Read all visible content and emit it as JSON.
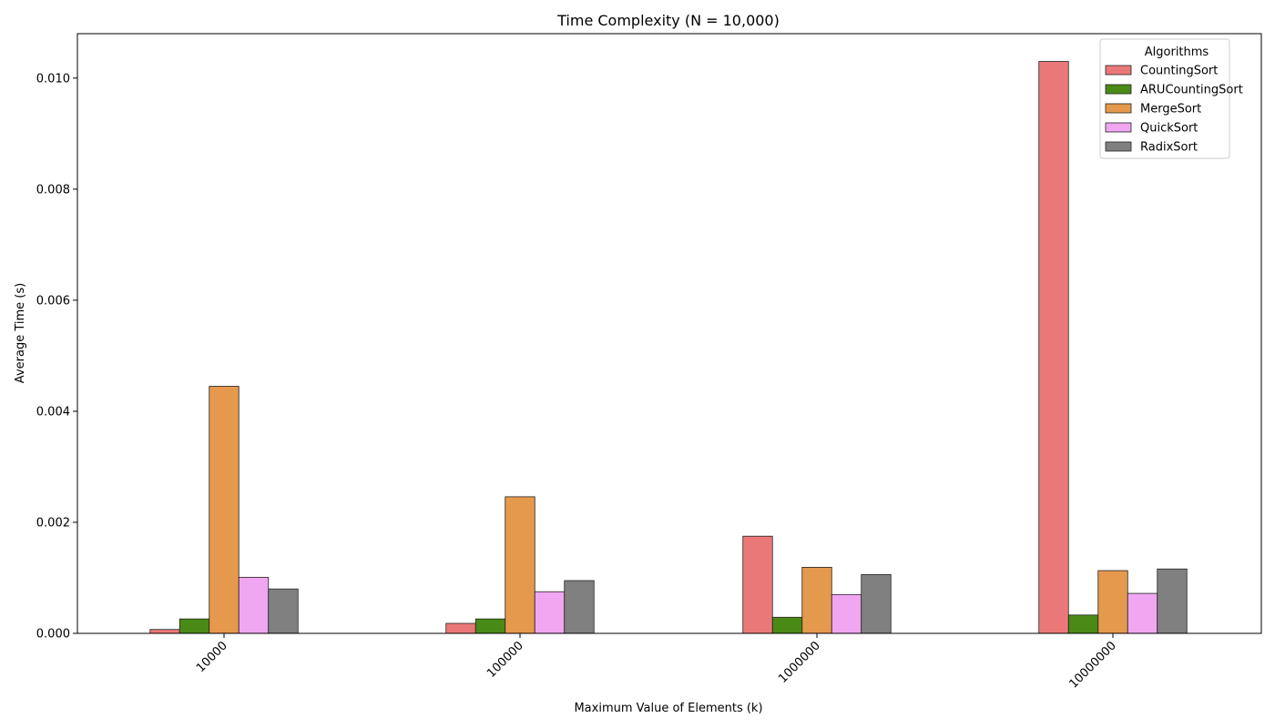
{
  "chart_data": {
    "type": "bar",
    "title": "Time Complexity (N = 10,000)",
    "xlabel": "Maximum Value of Elements (k)",
    "ylabel": "Average Time (s)",
    "categories": [
      "10000",
      "100000",
      "1000000",
      "10000000"
    ],
    "ylim": [
      0,
      0.0108
    ],
    "yticks": [
      "0.000",
      "0.002",
      "0.004",
      "0.006",
      "0.008",
      "0.010"
    ],
    "grid": false,
    "legend": {
      "title": "Algorithms",
      "placement": "top-right"
    },
    "series": [
      {
        "name": "CountingSort",
        "color": "#eb7878",
        "values": [
          7e-05,
          0.00018,
          0.00175,
          0.0103
        ]
      },
      {
        "name": "ARUCountingSort",
        "color": "#4a8a17",
        "values": [
          0.00026,
          0.00026,
          0.00029,
          0.00033
        ]
      },
      {
        "name": "MergeSort",
        "color": "#e5994c",
        "values": [
          0.00445,
          0.00246,
          0.00119,
          0.00113
        ]
      },
      {
        "name": "QuickSort",
        "color": "#f0a6f0",
        "values": [
          0.00101,
          0.00075,
          0.0007,
          0.00072
        ]
      },
      {
        "name": "RadixSort",
        "color": "#808080",
        "values": [
          0.0008,
          0.00095,
          0.00106,
          0.00116
        ]
      }
    ]
  }
}
